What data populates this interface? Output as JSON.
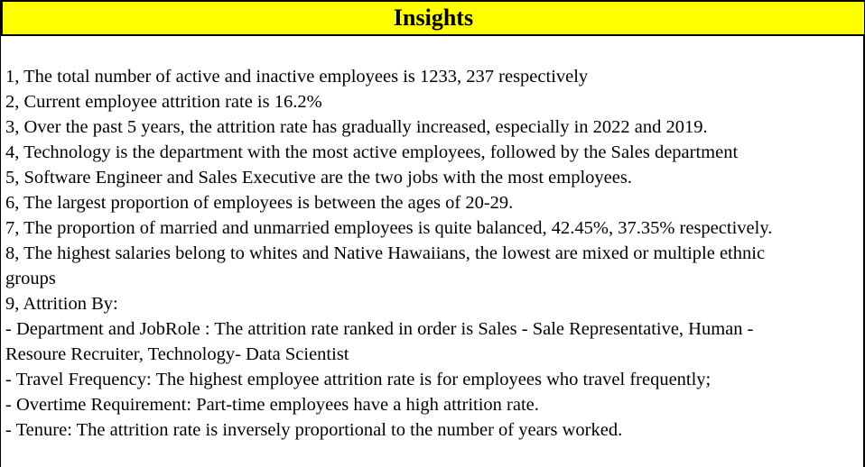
{
  "header": {
    "title": "Insights",
    "background_color": "#ffff00"
  },
  "lines": [
    "1, The total number of active and inactive employees is 1233, 237 respectively",
    "2, Current employee attrition rate is 16.2%",
    "3, Over the past 5 years, the attrition rate has gradually increased, especially in 2022 and 2019.",
    "4, Technology is the department with the most active employees, followed by the Sales department",
    "5, Software Engineer and Sales Executive are the two jobs with the most employees.",
    "6, The largest proportion of employees is between the ages of 20-29.",
    "7, The proportion of married and unmarried employees is quite balanced, 42.45%, 37.35% respectively.",
    "8, The highest salaries belong to whites and Native Hawaiians, the lowest are mixed or multiple ethnic",
    "groups",
    "9, Attrition By:",
    "- Department and JobRole : The attrition rate ranked in order is Sales - Sale Representative, Human -",
    "Resoure Recruiter, Technology- Data Scientist",
    "- Travel Frequency: The highest employee attrition rate is for employees who travel frequently;",
    "- Overtime Requirement: Part-time employees have a high attrition rate.",
    "- Tenure: The attrition rate is inversely proportional to the number of years worked."
  ]
}
